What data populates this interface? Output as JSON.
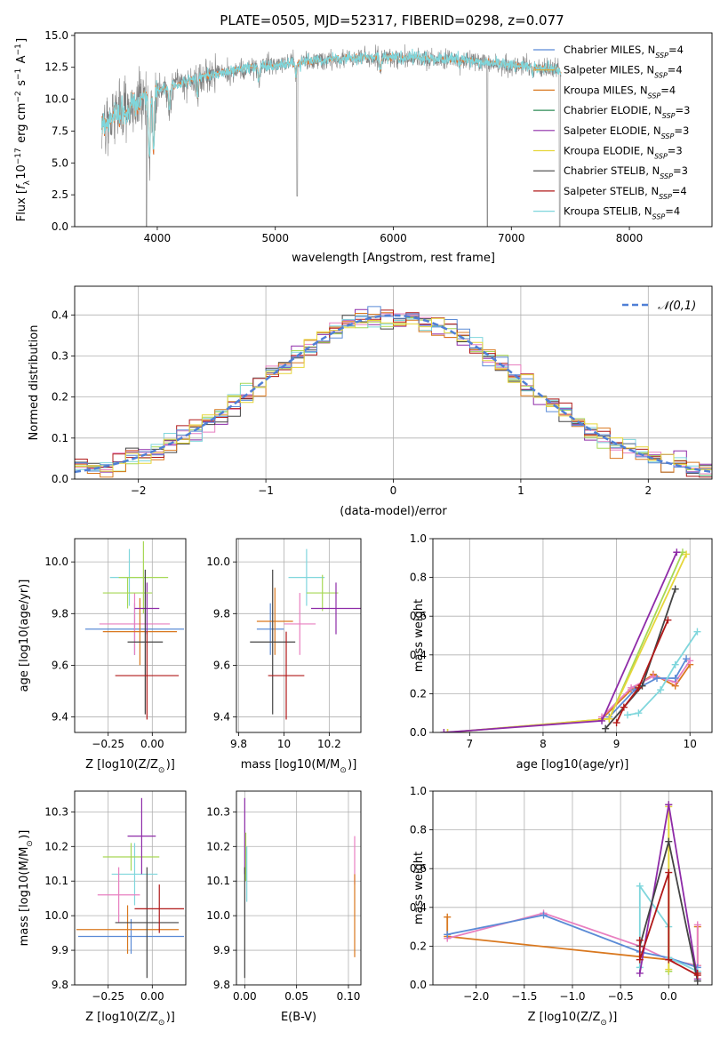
{
  "figure": {
    "title": "PLATE=0505, MJD=52317, FIBERID=0298, z=0.077"
  },
  "chart_data": [
    {
      "id": "spectrum",
      "type": "line",
      "xlabel": "wavelength [Angstrom, rest frame]",
      "ylabel": "Flux [f_λ 10^-17 erg cm^-2 s^-1 A^-1]",
      "xlim": [
        3300,
        8700
      ],
      "ylim": [
        0,
        15.2
      ],
      "xticks": [
        4000,
        5000,
        6000,
        7000,
        8000
      ],
      "yticks": [
        0.0,
        2.5,
        5.0,
        7.5,
        10.0,
        12.5,
        15.0
      ],
      "x_range_data": [
        3530,
        7420
      ],
      "continuum": [
        [
          3530,
          7.8
        ],
        [
          3700,
          9.0
        ],
        [
          3900,
          10.2
        ],
        [
          4100,
          11.0
        ],
        [
          4400,
          11.8
        ],
        [
          4800,
          12.5
        ],
        [
          5200,
          12.9
        ],
        [
          5600,
          13.2
        ],
        [
          6000,
          13.3
        ],
        [
          6400,
          13.2
        ],
        [
          6800,
          12.9
        ],
        [
          7200,
          12.5
        ],
        [
          7420,
          12.3
        ]
      ],
      "dips": [
        [
          3934,
          5.2
        ],
        [
          3969,
          6.0
        ],
        [
          4102,
          9.3
        ],
        [
          4340,
          10.3
        ],
        [
          4861,
          11.5
        ],
        [
          5175,
          11.8
        ],
        [
          5890,
          12.3
        ],
        [
          6563,
          12.6
        ],
        [
          7180,
          12.0
        ]
      ],
      "gaps": [
        [
          3908,
          0.0
        ],
        [
          5185,
          2.4
        ],
        [
          6797,
          0.0
        ],
        [
          7410,
          0.0
        ]
      ],
      "grid": false,
      "legend_position": "upper right",
      "legend": [
        {
          "label": "Chabrier MILES, N_SSP=4",
          "name": "Chabrier MILES",
          "nssp": "4",
          "color": "#5b8bd6"
        },
        {
          "label": "Salpeter MILES, N_SSP=4",
          "name": "Salpeter MILES",
          "nssp": "4",
          "color": "#e8a52a"
        },
        {
          "label": "Kroupa MILES, N_SSP=4",
          "name": "Kroupa MILES",
          "nssp": "4",
          "color": "#d9781f"
        },
        {
          "label": "Chabrier ELODIE, N_SSP=3",
          "name": "Chabrier ELODIE",
          "nssp": "3",
          "color": "#2e8b57"
        },
        {
          "label": "Salpeter ELODIE, N_SSP=3",
          "name": "Salpeter ELODIE",
          "nssp": "3",
          "color": "#8e2ba8"
        },
        {
          "label": "Kroupa ELODIE, N_SSP=3",
          "name": "Kroupa ELODIE",
          "nssp": "3",
          "color": "#e6d63a"
        },
        {
          "label": "Chabrier STELIB, N_SSP=3",
          "name": "Chabrier STELIB",
          "nssp": "3",
          "color": "#444444"
        },
        {
          "label": "Salpeter STELIB, N_SSP=4",
          "name": "Salpeter STELIB",
          "nssp": "4",
          "color": "#b01818"
        },
        {
          "label": "Kroupa STELIB, N_SSP=4",
          "name": "Kroupa STELIB",
          "nssp": "4",
          "color": "#7fd6dc"
        }
      ],
      "series_colors": {
        "data": "#808080",
        "models": [
          "#e8702a",
          "#7fd6dc"
        ]
      }
    },
    {
      "id": "residuals",
      "type": "histogram",
      "xlabel": "(data-model)/error",
      "ylabel": "Normed distribution",
      "xlim": [
        -2.5,
        2.5
      ],
      "ylim": [
        0,
        0.47
      ],
      "xticks": [
        -2,
        -1,
        0,
        1,
        2
      ],
      "xtick_labels": [
        "−2",
        "−1",
        "0",
        "1",
        "2"
      ],
      "yticks": [
        0.0,
        0.1,
        0.2,
        0.3,
        0.4
      ],
      "grid": true,
      "legend": [
        {
          "label": "𝒩(0,1)",
          "color": "#4f7fd6",
          "style": "dashed"
        }
      ],
      "bin_width": 0.1,
      "histogram_colors": [
        "#8e2ba8",
        "#e87fc0",
        "#444444",
        "#a6d854",
        "#7fd6dc",
        "#d9781f",
        "#b01818",
        "#5b8bd6",
        "#e6d63a"
      ],
      "gaussian": {
        "mean": 0,
        "sigma": 1
      }
    },
    {
      "id": "age_vs_z",
      "type": "errorbar",
      "xlabel": "Z [log10(Z/Z_⊙)]",
      "ylabel": "age  [log10(age/yr)]",
      "xlim": [
        -0.44,
        0.19
      ],
      "ylim": [
        9.34,
        10.09
      ],
      "xticks": [
        -0.25,
        0.0
      ],
      "xtick_labels": [
        "−0.25",
        "0.00"
      ],
      "yticks": [
        9.4,
        9.6,
        9.8,
        10.0
      ],
      "grid": true,
      "points": [
        {
          "x": -0.1,
          "y": 9.74,
          "xerr": 0.28,
          "yerr": 0.1,
          "color": "#5b8bd6"
        },
        {
          "x": -0.13,
          "y": 9.94,
          "xerr": 0.11,
          "yerr": 0.11,
          "color": "#7fd6dc"
        },
        {
          "x": -0.1,
          "y": 9.76,
          "xerr": 0.2,
          "yerr": 0.12,
          "color": "#e87fc0"
        },
        {
          "x": -0.07,
          "y": 9.73,
          "xerr": 0.21,
          "yerr": 0.13,
          "color": "#d9781f"
        },
        {
          "x": -0.05,
          "y": 9.94,
          "xerr": 0.14,
          "yerr": 0.14,
          "color": "#a6d854"
        },
        {
          "x": -0.03,
          "y": 9.82,
          "xerr": 0.07,
          "yerr": 0.1,
          "color": "#8e2ba8"
        },
        {
          "x": -0.14,
          "y": 9.88,
          "xerr": 0.14,
          "yerr": 0.06,
          "color": "#a6d854"
        },
        {
          "x": -0.04,
          "y": 9.69,
          "xerr": 0.1,
          "yerr": 0.28,
          "color": "#444444"
        },
        {
          "x": -0.03,
          "y": 9.56,
          "xerr": 0.18,
          "yerr": 0.17,
          "color": "#b01818"
        }
      ]
    },
    {
      "id": "age_vs_mass",
      "type": "errorbar",
      "xlabel": "mass [log10(M/M_⊙)]",
      "ylabel": "",
      "xlim": [
        9.79,
        10.34
      ],
      "ylim": [
        9.34,
        10.09
      ],
      "xticks": [
        9.8,
        10.0,
        10.2
      ],
      "yticks": [
        9.4,
        9.6,
        9.8,
        10.0
      ],
      "grid": true,
      "points": [
        {
          "x": 9.94,
          "y": 9.74,
          "xerr": 0.06,
          "yerr": 0.1,
          "color": "#5b8bd6"
        },
        {
          "x": 10.1,
          "y": 9.94,
          "xerr": 0.08,
          "yerr": 0.11,
          "color": "#7fd6dc"
        },
        {
          "x": 10.07,
          "y": 9.76,
          "xerr": 0.07,
          "yerr": 0.12,
          "color": "#e87fc0"
        },
        {
          "x": 9.96,
          "y": 9.77,
          "xerr": 0.08,
          "yerr": 0.13,
          "color": "#d9781f"
        },
        {
          "x": 10.17,
          "y": 9.88,
          "xerr": 0.07,
          "yerr": 0.07,
          "color": "#a6d854"
        },
        {
          "x": 10.23,
          "y": 9.82,
          "xerr": 0.11,
          "yerr": 0.1,
          "color": "#8e2ba8"
        },
        {
          "x": 9.95,
          "y": 9.69,
          "xerr": 0.1,
          "yerr": 0.28,
          "color": "#444444"
        },
        {
          "x": 10.01,
          "y": 9.56,
          "xerr": 0.08,
          "yerr": 0.17,
          "color": "#b01818"
        }
      ]
    },
    {
      "id": "mass_weight_vs_age",
      "type": "line",
      "xlabel": "age  [log10(age/yr)]",
      "ylabel": "mass weight",
      "xlim": [
        6.5,
        10.3
      ],
      "ylim": [
        0,
        1
      ],
      "xticks": [
        7,
        8,
        9,
        10
      ],
      "yticks": [
        0.0,
        0.2,
        0.4,
        0.6,
        0.8,
        1.0
      ],
      "grid": true,
      "series": [
        {
          "color": "#d9781f",
          "x": [
            8.8,
            9.2,
            9.5,
            9.8,
            10.0
          ],
          "y": [
            0.07,
            0.22,
            0.3,
            0.24,
            0.35
          ]
        },
        {
          "color": "#e87fc0",
          "x": [
            8.8,
            9.2,
            9.5,
            9.8,
            10.0
          ],
          "y": [
            0.08,
            0.23,
            0.29,
            0.26,
            0.37
          ]
        },
        {
          "color": "#5b8bd6",
          "x": [
            8.9,
            9.25,
            9.55,
            9.8,
            9.95
          ],
          "y": [
            0.08,
            0.22,
            0.28,
            0.28,
            0.38
          ]
        },
        {
          "color": "#7fd6dc",
          "x": [
            9.15,
            9.3,
            9.6,
            9.8,
            10.1
          ],
          "y": [
            0.09,
            0.1,
            0.22,
            0.35,
            0.52
          ]
        },
        {
          "color": "#a6d854",
          "x": [
            6.7,
            8.9,
            9.9
          ],
          "y": [
            0.0,
            0.07,
            0.93
          ]
        },
        {
          "color": "#e6d63a",
          "x": [
            6.7,
            8.9,
            9.95
          ],
          "y": [
            0.0,
            0.07,
            0.92
          ]
        },
        {
          "color": "#8e2ba8",
          "x": [
            6.65,
            8.8,
            9.82
          ],
          "y": [
            0.0,
            0.06,
            0.93
          ]
        },
        {
          "color": "#444444",
          "x": [
            8.85,
            9.35,
            9.8
          ],
          "y": [
            0.02,
            0.24,
            0.74
          ]
        },
        {
          "color": "#b01818",
          "x": [
            9.0,
            9.1,
            9.3,
            9.7
          ],
          "y": [
            0.05,
            0.13,
            0.23,
            0.58
          ]
        }
      ]
    },
    {
      "id": "mass_vs_z",
      "type": "errorbar",
      "xlabel": "Z [log10(Z/Z_⊙)]",
      "ylabel": "mass [log10(M/M_⊙)]",
      "xlim": [
        -0.44,
        0.19
      ],
      "ylim": [
        9.8,
        10.36
      ],
      "xticks": [
        -0.25,
        0.0
      ],
      "xtick_labels": [
        "−0.25",
        "0.00"
      ],
      "yticks": [
        9.8,
        9.9,
        10.0,
        10.1,
        10.2,
        10.3
      ],
      "grid": true,
      "points": [
        {
          "x": -0.12,
          "y": 9.94,
          "xerr": 0.3,
          "yerr": 0.05,
          "color": "#5b8bd6"
        },
        {
          "x": -0.1,
          "y": 10.12,
          "xerr": 0.13,
          "yerr": 0.09,
          "color": "#7fd6dc"
        },
        {
          "x": -0.19,
          "y": 10.06,
          "xerr": 0.12,
          "yerr": 0.08,
          "color": "#e87fc0"
        },
        {
          "x": -0.14,
          "y": 9.96,
          "xerr": 0.29,
          "yerr": 0.07,
          "color": "#d9781f"
        },
        {
          "x": -0.12,
          "y": 10.17,
          "xerr": 0.16,
          "yerr": 0.04,
          "color": "#a6d854"
        },
        {
          "x": -0.06,
          "y": 10.23,
          "xerr": 0.08,
          "yerr": 0.11,
          "color": "#8e2ba8"
        },
        {
          "x": -0.03,
          "y": 9.98,
          "xerr": 0.18,
          "yerr": 0.16,
          "color": "#444444"
        },
        {
          "x": 0.04,
          "y": 10.02,
          "xerr": 0.14,
          "yerr": 0.07,
          "color": "#b01818"
        }
      ]
    },
    {
      "id": "mass_vs_ebv",
      "type": "errorbar",
      "xlabel": "E(B-V)",
      "ylabel": "",
      "xlim": [
        -0.008,
        0.112
      ],
      "ylim": [
        9.8,
        10.36
      ],
      "xticks": [
        0.0,
        0.05,
        0.1
      ],
      "xtick_labels": [
        "0.00",
        "0.05",
        "0.10"
      ],
      "yticks": [
        9.8,
        9.9,
        10.0,
        10.1,
        10.2,
        10.3
      ],
      "grid": true,
      "points": [
        {
          "x": 0.0,
          "y": 10.23,
          "xerr": 0,
          "yerr": 0.11,
          "color": "#8e2ba8"
        },
        {
          "x": 0.001,
          "y": 10.17,
          "xerr": 0,
          "yerr": 0.07,
          "color": "#a6d854"
        },
        {
          "x": 0.002,
          "y": 10.12,
          "xerr": 0,
          "yerr": 0.08,
          "color": "#7fd6dc"
        },
        {
          "x": 0.0,
          "y": 9.98,
          "xerr": 0,
          "yerr": 0.16,
          "color": "#444444"
        },
        {
          "x": 0.106,
          "y": 10.16,
          "xerr": 0,
          "yerr": 0.07,
          "color": "#e87fc0"
        },
        {
          "x": 0.106,
          "y": 10.0,
          "xerr": 0,
          "yerr": 0.12,
          "color": "#d9781f"
        }
      ]
    },
    {
      "id": "mass_weight_vs_z",
      "type": "line",
      "xlabel": "Z [log10(Z/Z_⊙)]",
      "ylabel": "mass weight",
      "xlim": [
        -2.45,
        0.45
      ],
      "ylim": [
        0,
        1
      ],
      "xticks": [
        -2.0,
        -1.5,
        -1.0,
        -0.5,
        0.0
      ],
      "xtick_labels": [
        "−2.0",
        "−1.5",
        "−1.0",
        "−0.5",
        "0.0"
      ],
      "yticks": [
        0.0,
        0.2,
        0.4,
        0.6,
        0.8,
        1.0
      ],
      "grid": true,
      "series": [
        {
          "color": "#d9781f",
          "x": [
            -2.3,
            -2.3,
            0.0,
            0.3,
            0.3
          ],
          "y": [
            0.35,
            0.25,
            0.13,
            0.1,
            0.3
          ]
        },
        {
          "color": "#e87fc0",
          "x": [
            -2.3,
            -1.3,
            -0.3,
            0.0,
            0.3,
            0.3
          ],
          "y": [
            0.24,
            0.37,
            0.2,
            0.13,
            0.1,
            0.31
          ]
        },
        {
          "color": "#5b8bd6",
          "x": [
            -2.3,
            -1.3,
            -0.3,
            0.0,
            0.3
          ],
          "y": [
            0.26,
            0.36,
            0.17,
            0.14,
            0.09
          ]
        },
        {
          "color": "#7fd6dc",
          "x": [
            -0.3,
            -0.3,
            0.0,
            0.0,
            0.3
          ],
          "y": [
            0.09,
            0.51,
            0.3,
            0.14,
            0.07
          ]
        },
        {
          "color": "#a6d854",
          "x": [
            0.0,
            0.0
          ],
          "y": [
            0.07,
            0.93
          ]
        },
        {
          "color": "#e6d63a",
          "x": [
            0.0,
            0.0
          ],
          "y": [
            0.08,
            0.92
          ]
        },
        {
          "color": "#8e2ba8",
          "x": [
            -0.3,
            0.0,
            0.3
          ],
          "y": [
            0.06,
            0.93,
            0.03
          ]
        },
        {
          "color": "#444444",
          "x": [
            -0.3,
            0.0,
            0.3
          ],
          "y": [
            0.2,
            0.74,
            0.02
          ]
        },
        {
          "color": "#b01818",
          "x": [
            -0.3,
            -0.3,
            0.0,
            0.0,
            0.3,
            0.3
          ],
          "y": [
            0.23,
            0.13,
            0.58,
            0.13,
            0.05,
            0.06
          ]
        }
      ]
    }
  ]
}
